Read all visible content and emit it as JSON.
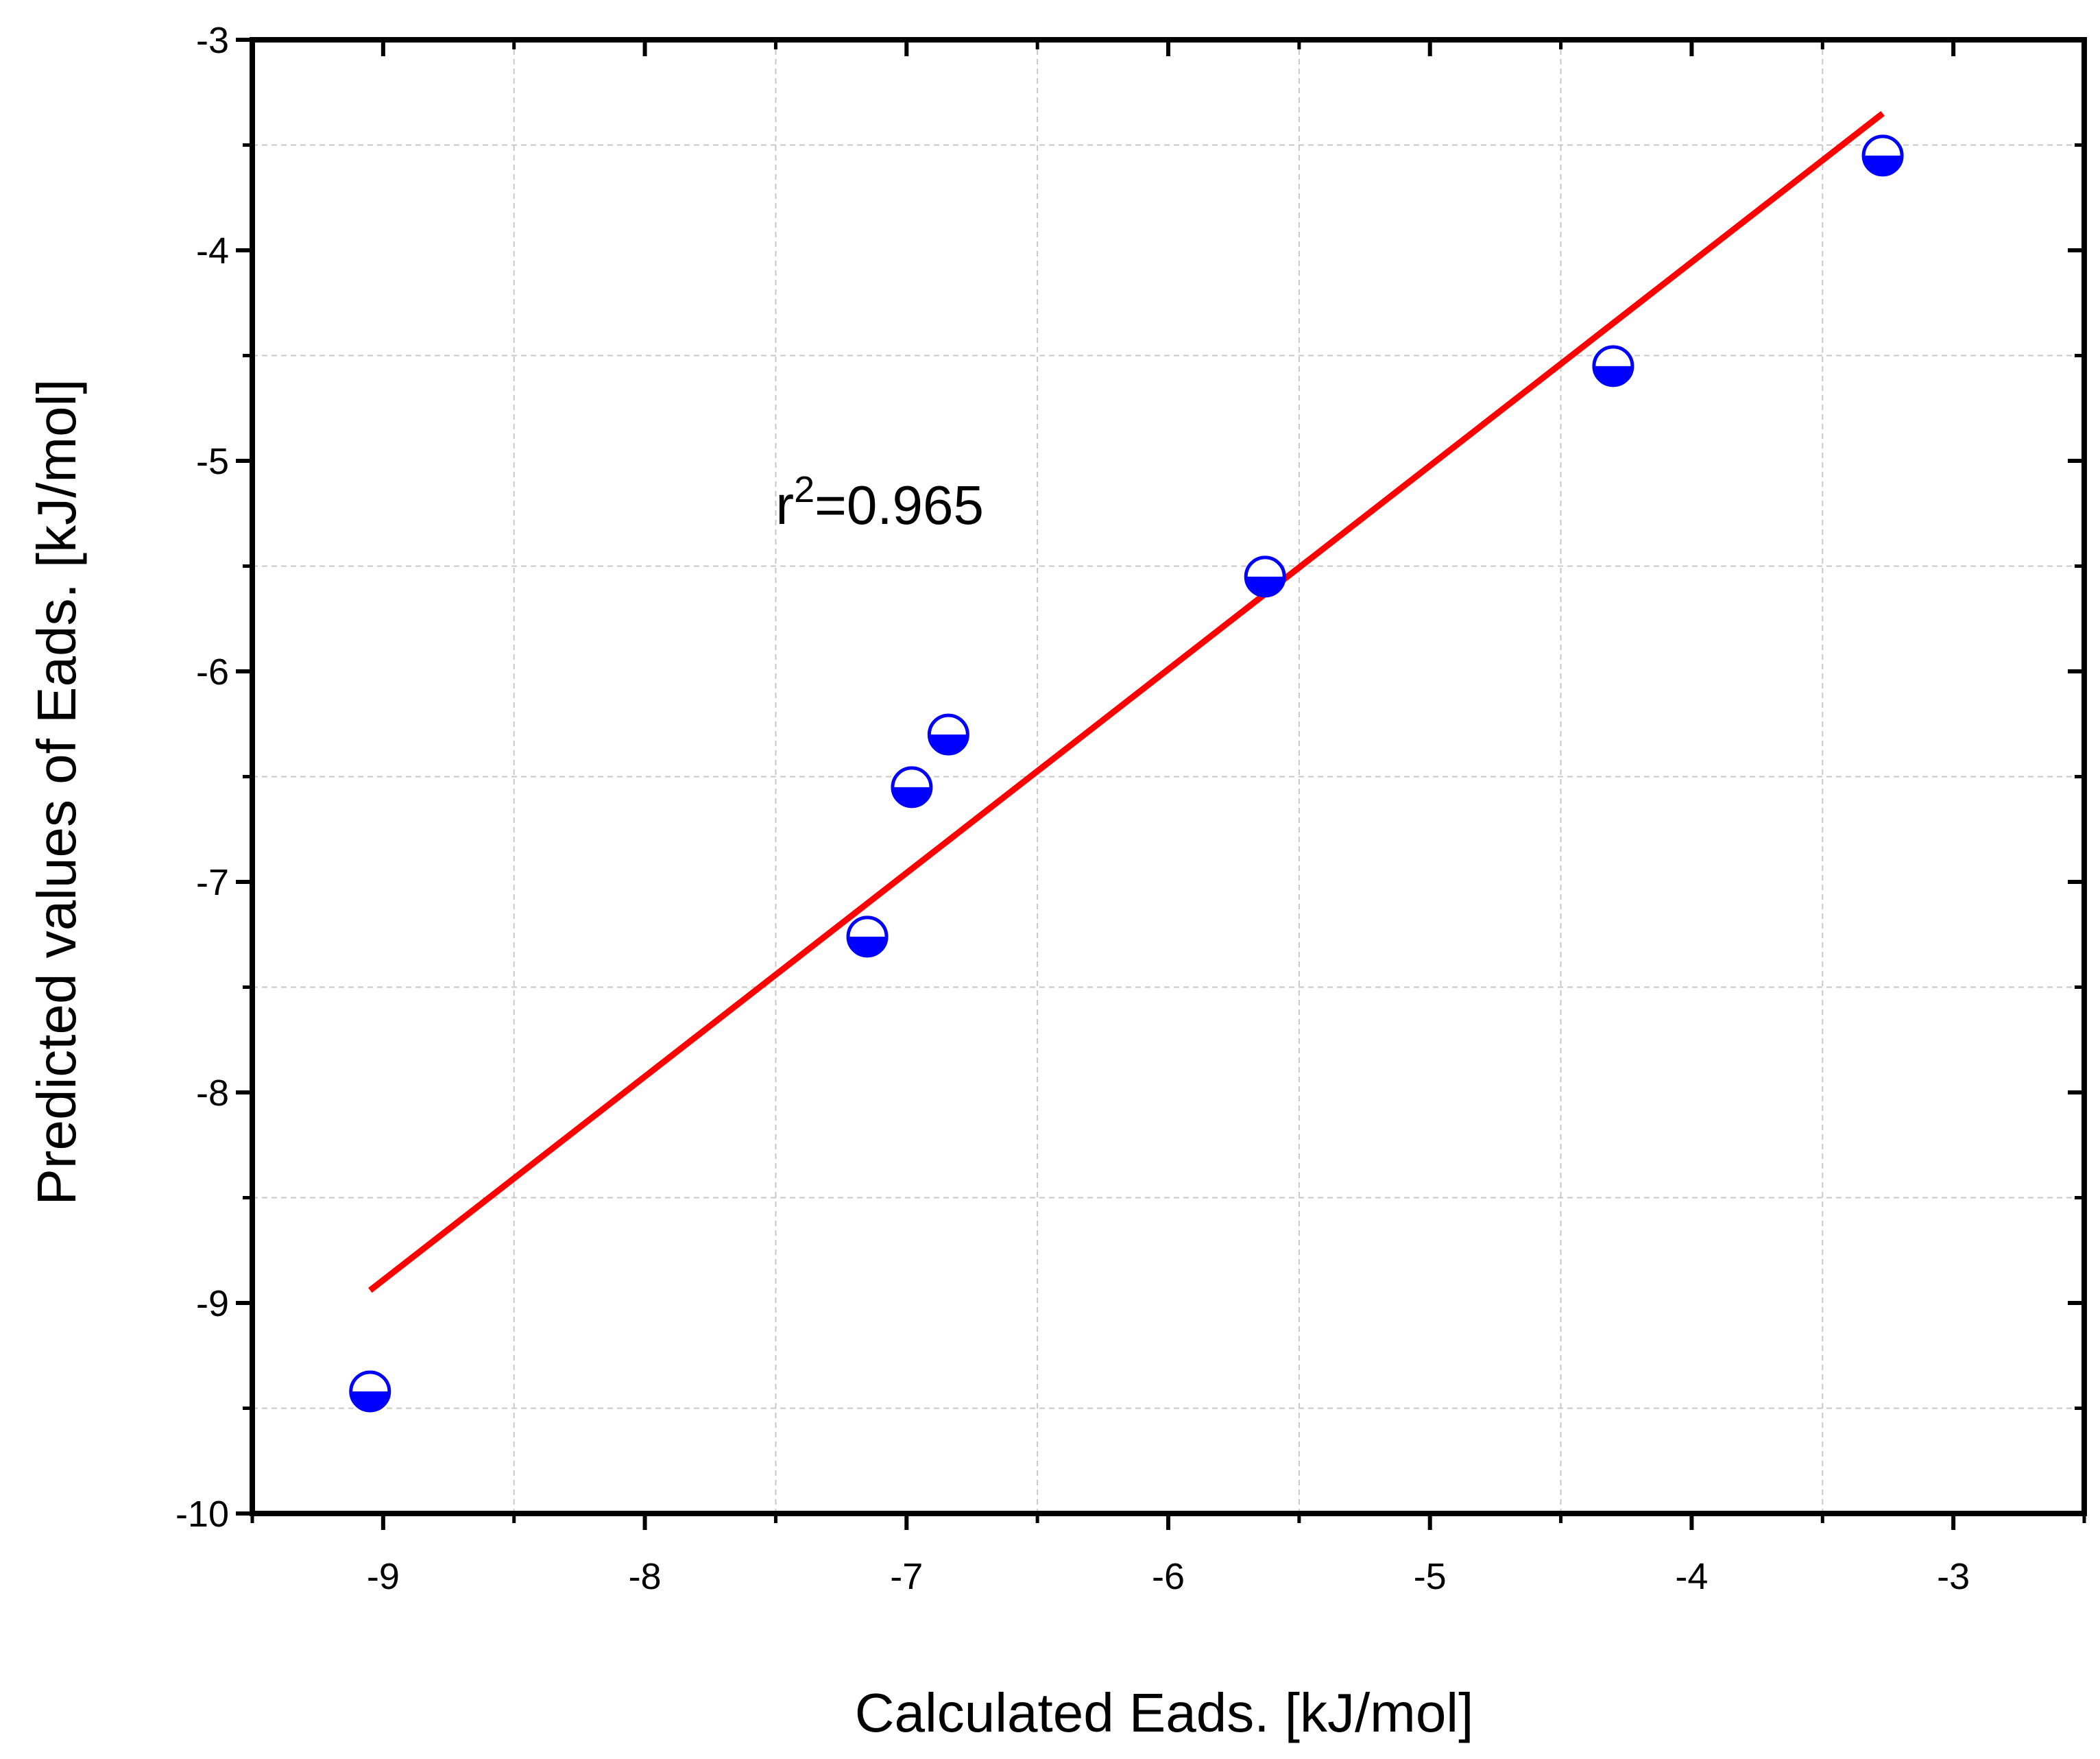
{
  "chart_data": {
    "type": "scatter",
    "xlabel": "Calculated Eads. [kJ/mol]",
    "ylabel": "Predicted values of Eads. [kJ/mol]",
    "xlim": [
      -9.5,
      -2.5
    ],
    "ylim": [
      -10,
      -3
    ],
    "x_ticks": [
      -9,
      -8,
      -7,
      -6,
      -5,
      -4,
      -3
    ],
    "y_ticks": [
      -10,
      -9,
      -8,
      -7,
      -6,
      -5,
      -4,
      -3
    ],
    "x_tick_labels": [
      "-9",
      "-8",
      "-7",
      "-6",
      "-5",
      "-4",
      "-3"
    ],
    "y_tick_labels": [
      "-10",
      "-9",
      "-8",
      "-7",
      "-6",
      "-5",
      "-4",
      "-3"
    ],
    "x_minor_ticks": [
      -9.5,
      -8.5,
      -7.5,
      -6.5,
      -5.5,
      -4.5,
      -3.5,
      -2.5
    ],
    "y_minor_ticks": [
      -9.5,
      -8.5,
      -7.5,
      -6.5,
      -5.5,
      -4.5,
      -3.5
    ],
    "grid": true,
    "points": [
      {
        "x": -9.05,
        "y": -9.42
      },
      {
        "x": -7.15,
        "y": -7.26
      },
      {
        "x": -6.98,
        "y": -6.55
      },
      {
        "x": -6.84,
        "y": -6.3
      },
      {
        "x": -5.63,
        "y": -5.55
      },
      {
        "x": -4.3,
        "y": -4.55
      },
      {
        "x": -3.27,
        "y": -3.55
      }
    ],
    "fit_line": {
      "x": [
        -9.05,
        -3.27
      ],
      "y": [
        -8.94,
        -3.35
      ]
    },
    "annotation": {
      "base": "r",
      "sup": "2",
      "rest": "=0.965",
      "x": -7.5,
      "y": -5.3
    },
    "colors": {
      "marker": "#0000ff",
      "fit": "#ff0000",
      "grid": "#c8c8c8",
      "axis": "#000000"
    }
  }
}
